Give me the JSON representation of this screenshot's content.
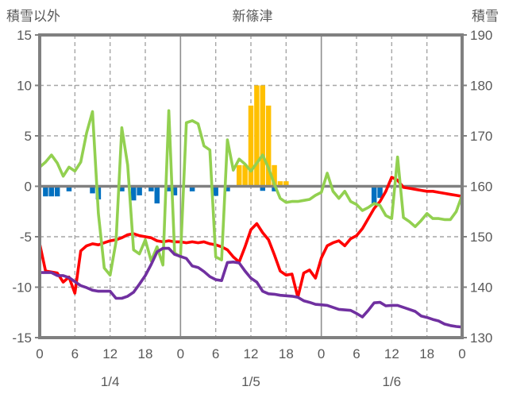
{
  "header": {
    "left_axis_title": "積雪以外",
    "chart_title": "新篠津",
    "right_axis_title": "積雪"
  },
  "colors": {
    "green": "#92D050",
    "red": "#FF0000",
    "purple": "#7030A0",
    "orange": "#FFC000",
    "blue": "#0070C0",
    "border": "#808080",
    "grid": "#A6A6A6",
    "day_line": "#8F8F8F",
    "zero_line": "#808080",
    "text": "#595959"
  },
  "chart_data": {
    "type": "combo",
    "title": "新篠津",
    "x_unit": "hour",
    "x_range": [
      0,
      72
    ],
    "x_tick_interval": 6,
    "x_tick_labels": [
      "0",
      "6",
      "12",
      "18",
      "0",
      "6",
      "12",
      "18",
      "0",
      "6",
      "12",
      "18",
      "0"
    ],
    "day_labels": [
      {
        "label": "1/4",
        "hour": 12
      },
      {
        "label": "1/5",
        "hour": 36
      },
      {
        "label": "1/6",
        "hour": 60
      }
    ],
    "left_axis": {
      "title": "積雪以外",
      "min": -15,
      "max": 15,
      "ticks": [
        15,
        10,
        5,
        0,
        -5,
        -10,
        -15
      ],
      "grid_dashed": [
        10,
        5,
        -5,
        -10
      ]
    },
    "right_axis": {
      "title": "積雪",
      "min": 130,
      "max": 190,
      "ticks": [
        190,
        180,
        170,
        160,
        150,
        140,
        130
      ]
    },
    "series": [
      {
        "id": "orange_bars",
        "type": "bar",
        "axis": "left",
        "color_key": "orange",
        "points": [
          [
            34,
            2.1
          ],
          [
            35,
            2.1
          ],
          [
            36,
            8
          ],
          [
            37,
            10
          ],
          [
            38,
            10
          ],
          [
            39,
            8
          ],
          [
            40,
            2.1
          ],
          [
            41,
            0.5
          ],
          [
            42,
            0.5
          ]
        ]
      },
      {
        "id": "blue_bars",
        "type": "bar",
        "axis": "left",
        "color_key": "blue",
        "points": [
          [
            1,
            -1.0
          ],
          [
            2,
            -1.0
          ],
          [
            3,
            -1.0
          ],
          [
            5,
            -0.5
          ],
          [
            9,
            -0.7
          ],
          [
            10,
            -1.3
          ],
          [
            14,
            -0.5
          ],
          [
            16,
            -1.4
          ],
          [
            17,
            -0.9
          ],
          [
            19,
            -0.5
          ],
          [
            20,
            -1.7
          ],
          [
            22,
            -0.5
          ],
          [
            23,
            -0.9
          ],
          [
            26,
            -0.5
          ],
          [
            30,
            -0.95
          ],
          [
            32,
            -0.5
          ],
          [
            38,
            -0.45
          ],
          [
            40,
            -0.5
          ],
          [
            57,
            -1.85
          ],
          [
            58,
            -1.15
          ]
        ]
      },
      {
        "id": "red_line",
        "type": "line",
        "axis": "left",
        "color_key": "red",
        "values": [
          -5.7,
          -8.4,
          -8.5,
          -8.6,
          -9.5,
          -9.0,
          -10.6,
          -6.4,
          -5.9,
          -5.7,
          -5.8,
          -5.6,
          -5.4,
          -5.3,
          -5.1,
          -4.8,
          -4.7,
          -4.9,
          -5.0,
          -5.1,
          -5.4,
          -5.5,
          -5.4,
          -5.5,
          -5.5,
          -5.6,
          -5.5,
          -5.6,
          -5.5,
          -5.7,
          -5.8,
          -6.0,
          -6.3,
          -7.0,
          -7.5,
          -6.0,
          -4.3,
          -3.7,
          -4.6,
          -5.3,
          -6.8,
          -8.4,
          -8.8,
          -8.7,
          -11.0,
          -8.6,
          -8.3,
          -9.1,
          -7.1,
          -5.9,
          -5.6,
          -5.4,
          -5.9,
          -5.2,
          -4.9,
          -4.2,
          -3.2,
          -2.2,
          -1.5,
          -0.5,
          0.9,
          0.6,
          -0.1,
          -0.2,
          -0.3,
          -0.4,
          -0.5,
          -0.5,
          -0.6,
          -0.7,
          -0.8,
          -0.9,
          -1.0
        ]
      },
      {
        "id": "green_line",
        "type": "line",
        "axis": "left",
        "color_key": "green",
        "values": [
          1.9,
          2.4,
          3.1,
          2.3,
          1.0,
          1.9,
          1.5,
          2.4,
          5.3,
          7.4,
          -2.7,
          -8.1,
          -8.8,
          -5.5,
          5.8,
          2.1,
          -6.3,
          -6.7,
          -5.3,
          -7.4,
          -6.0,
          -7.8,
          7.5,
          -6.6,
          -7.0,
          6.3,
          6.5,
          6.2,
          4.0,
          3.6,
          -7.0,
          -7.3,
          4.6,
          1.6,
          2.7,
          2.2,
          1.5,
          2.3,
          3.1,
          1.8,
          0.2,
          -1.2,
          -1.6,
          -1.5,
          -1.5,
          -1.4,
          -1.3,
          -0.9,
          -0.6,
          1.3,
          -0.5,
          -1.2,
          -0.5,
          -1.5,
          -1.8,
          -2.4,
          -2.1,
          -1.7,
          -1.9,
          -2.9,
          -3.2,
          2.9,
          -3.1,
          -3.5,
          -4.0,
          -3.4,
          -2.7,
          -3.2,
          -3.2,
          -3.3,
          -3.3,
          -2.5,
          -0.9
        ]
      },
      {
        "id": "purple_line",
        "type": "line",
        "axis": "right",
        "color_key": "purple",
        "values": [
          142.9,
          142.9,
          142.9,
          142.3,
          142.3,
          141.9,
          141.1,
          140.3,
          139.9,
          139.4,
          139.2,
          139.2,
          139.2,
          137.8,
          137.8,
          138.2,
          139.0,
          140.6,
          142.3,
          144.5,
          147.0,
          147.7,
          147.7,
          146.5,
          146.1,
          145.7,
          144.2,
          143.9,
          143.1,
          142.1,
          141.5,
          141.3,
          144.9,
          145.0,
          144.8,
          143.2,
          141.8,
          141.0,
          139.2,
          138.7,
          138.6,
          138.4,
          138.3,
          138.2,
          138.0,
          137.3,
          137.0,
          136.6,
          136.5,
          136.4,
          136.0,
          135.6,
          135.5,
          135.4,
          134.8,
          134.1,
          135.4,
          136.9,
          137.0,
          136.3,
          136.4,
          136.4,
          136.0,
          135.6,
          135.2,
          134.3,
          134.0,
          133.6,
          133.3,
          132.7,
          132.4,
          132.2,
          132.1
        ]
      }
    ]
  }
}
